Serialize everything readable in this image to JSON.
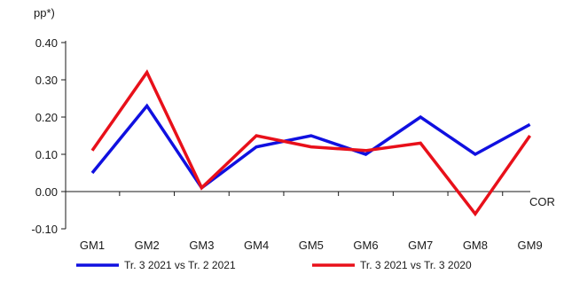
{
  "chart_data": {
    "type": "line",
    "unit_label": "pp*)",
    "axis_end_label": "COR",
    "categories": [
      "GM1",
      "GM2",
      "GM3",
      "GM4",
      "GM5",
      "GM6",
      "GM7",
      "GM8",
      "GM9"
    ],
    "ylim": [
      -0.1,
      0.4
    ],
    "yticks": [
      "0.40",
      "0.30",
      "0.20",
      "0.10",
      "0.00",
      "-0.10"
    ],
    "ytick_values": [
      0.4,
      0.3,
      0.2,
      0.1,
      0.0,
      -0.1
    ],
    "grid": false,
    "legend_position": "bottom",
    "series": [
      {
        "name": "Tr. 3 2021 vs Tr. 2 2021",
        "color": "#1010e0",
        "values": [
          0.05,
          0.23,
          0.01,
          0.12,
          0.15,
          0.1,
          0.2,
          0.1,
          0.18
        ]
      },
      {
        "name": "Tr. 3 2021 vs Tr. 3 2020",
        "color": "#e8101a",
        "values": [
          0.11,
          0.32,
          0.01,
          0.15,
          0.12,
          0.11,
          0.13,
          -0.06,
          0.15
        ]
      }
    ]
  }
}
